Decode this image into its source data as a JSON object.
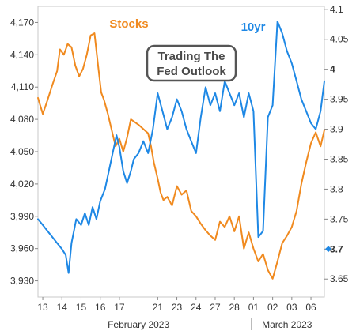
{
  "chart_data": {
    "type": "line",
    "title": "Trading The Fed Outlook",
    "title_lines": [
      "Trading The",
      "Fed Outlook"
    ],
    "grid": false,
    "x_tick_labels": [
      "13",
      "14",
      "15",
      "16",
      "17",
      "21",
      "23",
      "24",
      "27",
      "28",
      "01",
      "02",
      "03",
      "06"
    ],
    "x_tick_index": [
      0,
      2,
      4,
      6,
      8,
      12,
      14,
      16,
      18,
      20,
      22,
      24,
      26,
      28
    ],
    "x_months": [
      {
        "label": "February 2023",
        "center_index": 10
      },
      {
        "label": "March 2023",
        "center_index": 25.5
      }
    ],
    "month_divider_index": 21.8,
    "x_range": [
      -0.5,
      29.4
    ],
    "y_left": {
      "series": "Stocks",
      "range": [
        3915,
        4185
      ],
      "ticks": [
        3930,
        3960,
        3990,
        4020,
        4050,
        4080,
        4110,
        4140,
        4170
      ],
      "tick_labels": [
        "3,930",
        "3,960",
        "3,990",
        "4,020",
        "4,050",
        "4,080",
        "4,110",
        "4,140",
        "4,170"
      ]
    },
    "y_right": {
      "series": "10yr",
      "range": [
        3.62,
        4.105
      ],
      "ticks": [
        3.65,
        3.7,
        3.75,
        3.8,
        3.85,
        3.9,
        3.95,
        4.0,
        4.05,
        4.1
      ],
      "tick_labels": [
        "3.65",
        "3.7",
        "3.75",
        "3.8",
        "3.85",
        "3.9",
        "3.95",
        "4",
        "4.05",
        "4.1"
      ],
      "emphasized_ticks": [
        "4",
        "3.7"
      ]
    },
    "series": [
      {
        "name": "Stocks",
        "color": "#F08A1F",
        "axis": "left",
        "x": [
          -0.5,
          0.0,
          0.5,
          1.0,
          1.5,
          1.8,
          2.2,
          2.6,
          3.0,
          3.4,
          3.8,
          4.2,
          4.6,
          5.0,
          5.4,
          5.8,
          6.1,
          6.4,
          6.8,
          7.2,
          7.6,
          8.0,
          8.4,
          8.8,
          9.2,
          10.0,
          11.0,
          11.3,
          11.6,
          12.0,
          12.3,
          12.6,
          13.0,
          13.5,
          14.0,
          14.5,
          15.0,
          15.5,
          16.0,
          16.5,
          17.0,
          17.5,
          18.0,
          18.5,
          19.0,
          19.5,
          20.0,
          20.5,
          21.0,
          21.5,
          22.0,
          22.5,
          23.0,
          23.5,
          24.0,
          24.5,
          25.0,
          25.5,
          26.0,
          26.5,
          27.0,
          27.5,
          28.0,
          28.5,
          29.0,
          29.4
        ],
        "values": [
          4100,
          4085,
          4098,
          4112,
          4125,
          4145,
          4140,
          4150,
          4147,
          4130,
          4120,
          4127,
          4140,
          4158,
          4160,
          4128,
          4105,
          4098,
          4085,
          4070,
          4055,
          4062,
          4050,
          4063,
          4080,
          4075,
          4067,
          4055,
          4040,
          4025,
          4012,
          4005,
          4008,
          4000,
          4018,
          4010,
          4014,
          3995,
          3990,
          3983,
          3977,
          3972,
          3968,
          3985,
          3980,
          3990,
          3976,
          3990,
          3960,
          3975,
          3960,
          3948,
          3955,
          3940,
          3932,
          3948,
          3965,
          3972,
          3980,
          3995,
          4020,
          4040,
          4058,
          4068,
          4055,
          4070
        ]
      },
      {
        "name": "10yr",
        "color": "#1E88E5",
        "axis": "right",
        "x": [
          -0.5,
          0.0,
          0.5,
          1.0,
          1.5,
          2.0,
          2.4,
          2.7,
          3.0,
          3.5,
          4.0,
          4.4,
          4.8,
          5.2,
          5.6,
          6.0,
          6.5,
          6.9,
          7.3,
          7.7,
          8.0,
          8.4,
          8.8,
          9.2,
          9.5,
          10.0,
          10.5,
          11.0,
          11.5,
          12.0,
          12.5,
          13.0,
          13.5,
          14.0,
          14.5,
          15.0,
          15.5,
          16.0,
          16.5,
          17.0,
          17.5,
          18.0,
          18.5,
          19.0,
          19.5,
          20.0,
          20.5,
          21.0,
          21.5,
          22.0,
          22.5,
          23.0,
          23.5,
          24.0,
          24.5,
          25.0,
          25.5,
          26.0,
          26.5,
          27.0,
          27.5,
          28.0,
          28.5,
          29.0,
          29.4
        ],
        "values": [
          3.75,
          3.74,
          3.73,
          3.72,
          3.71,
          3.7,
          3.69,
          3.66,
          3.71,
          3.75,
          3.74,
          3.76,
          3.74,
          3.77,
          3.75,
          3.78,
          3.8,
          3.83,
          3.86,
          3.89,
          3.87,
          3.83,
          3.81,
          3.83,
          3.85,
          3.86,
          3.88,
          3.86,
          3.9,
          3.96,
          3.93,
          3.9,
          3.92,
          3.95,
          3.93,
          3.9,
          3.88,
          3.86,
          3.92,
          3.97,
          3.94,
          3.96,
          3.93,
          3.98,
          3.96,
          3.94,
          3.96,
          3.92,
          3.96,
          3.93,
          3.72,
          3.73,
          3.92,
          3.94,
          4.08,
          4.06,
          4.03,
          4.01,
          3.98,
          3.95,
          3.93,
          3.91,
          3.9,
          3.93,
          3.98
        ]
      }
    ],
    "end_marker": {
      "series": "10yr",
      "value": 3.7
    }
  }
}
